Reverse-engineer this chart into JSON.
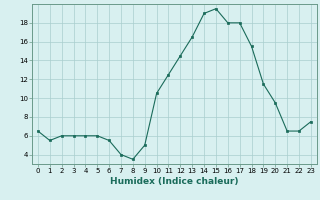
{
  "x": [
    0,
    1,
    2,
    3,
    4,
    5,
    6,
    7,
    8,
    9,
    10,
    11,
    12,
    13,
    14,
    15,
    16,
    17,
    18,
    19,
    20,
    21,
    22,
    23
  ],
  "y": [
    6.5,
    5.5,
    6.0,
    6.0,
    6.0,
    6.0,
    5.5,
    4.0,
    3.5,
    5.0,
    10.5,
    12.5,
    14.5,
    16.5,
    19.0,
    19.5,
    18.0,
    18.0,
    15.5,
    11.5,
    9.5,
    6.5,
    6.5,
    7.5
  ],
  "line_color": "#1a6b5a",
  "marker": "s",
  "marker_size": 1.8,
  "bg_color": "#d8f0f0",
  "grid_color": "#aacece",
  "xlabel": "Humidex (Indice chaleur)",
  "xlim": [
    -0.5,
    23.5
  ],
  "ylim": [
    3.0,
    20.0
  ],
  "yticks": [
    4,
    6,
    8,
    10,
    12,
    14,
    16,
    18
  ],
  "xticks": [
    0,
    1,
    2,
    3,
    4,
    5,
    6,
    7,
    8,
    9,
    10,
    11,
    12,
    13,
    14,
    15,
    16,
    17,
    18,
    19,
    20,
    21,
    22,
    23
  ],
  "tick_fontsize": 5.0,
  "xlabel_fontsize": 6.5,
  "spine_color": "#6a9a8a"
}
